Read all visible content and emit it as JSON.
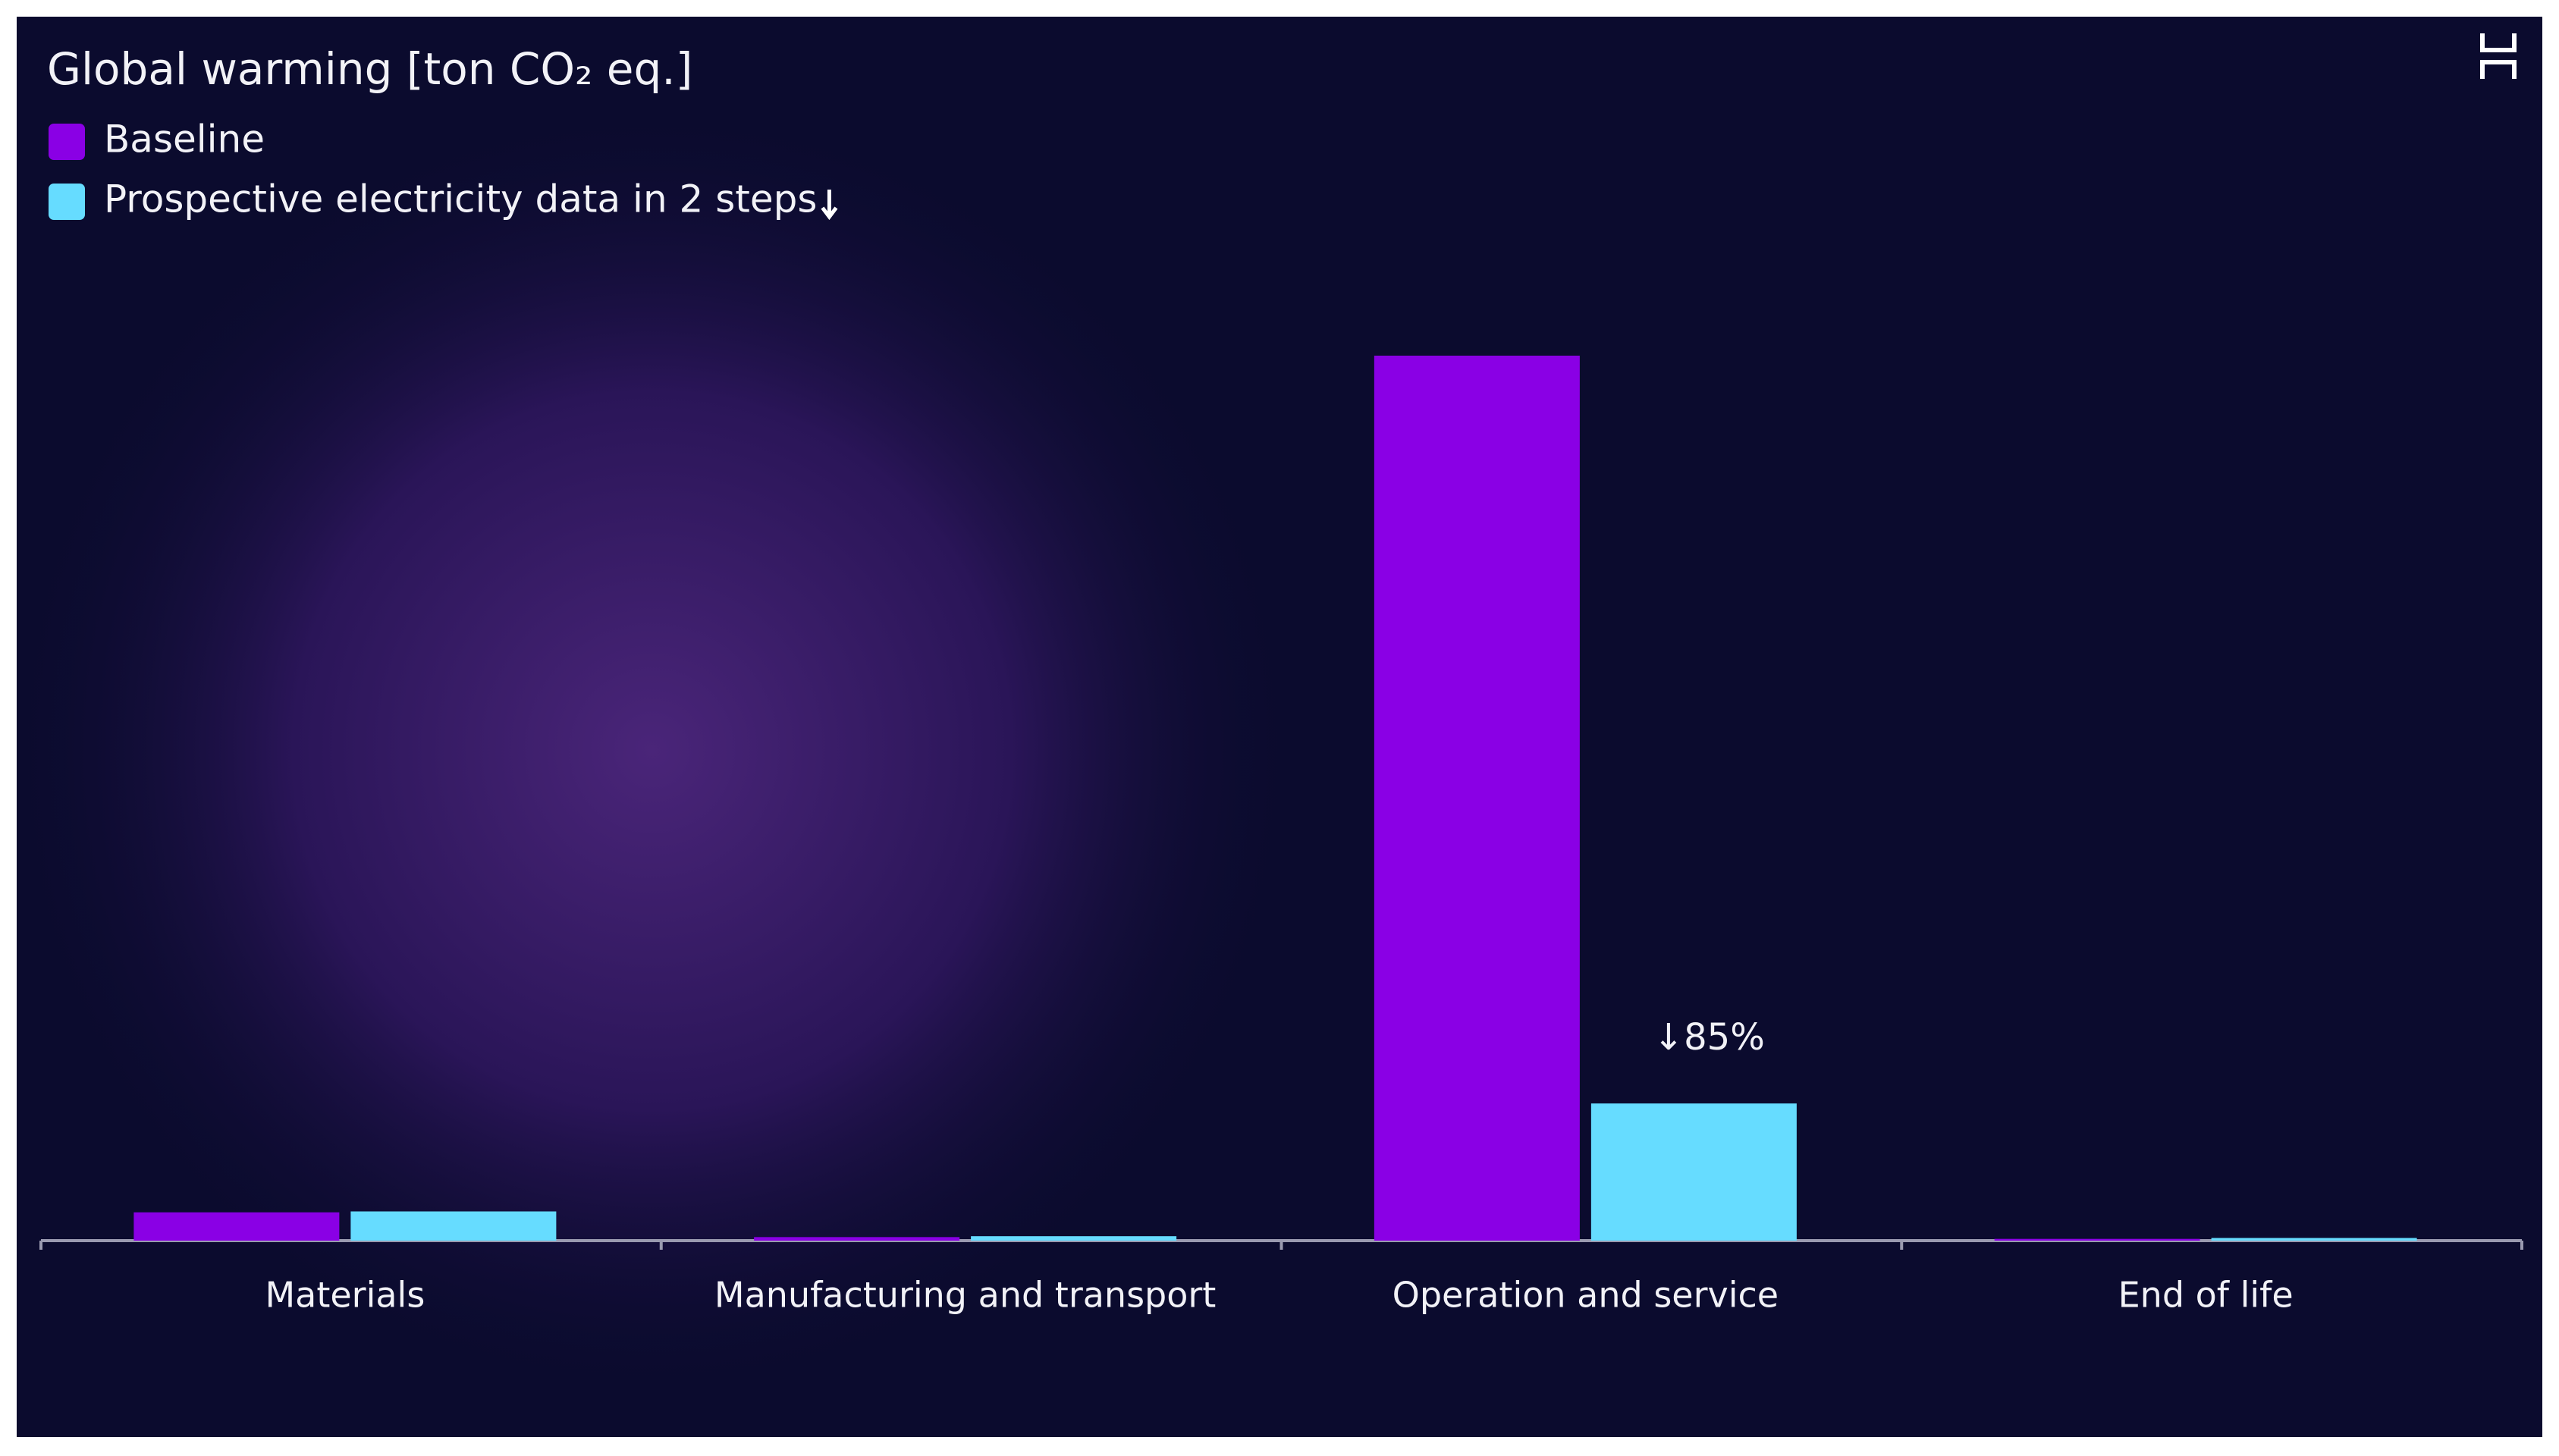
{
  "chart_data": {
    "type": "bar",
    "title": "Global warming [ton CO₂ eq.]",
    "categories": [
      "Materials",
      "Manufacturing and transport",
      "Operation and service",
      "End of life"
    ],
    "series": [
      {
        "name": "Baseline",
        "color": "#8a00e5",
        "values": [
          3.2,
          0.4,
          100,
          0.2
        ]
      },
      {
        "name": "Prospective electricity data in 2 steps",
        "color": "#66dcff",
        "values": [
          3.3,
          0.5,
          15.5,
          0.3
        ]
      }
    ],
    "annotation": "↓85%"
  }
}
